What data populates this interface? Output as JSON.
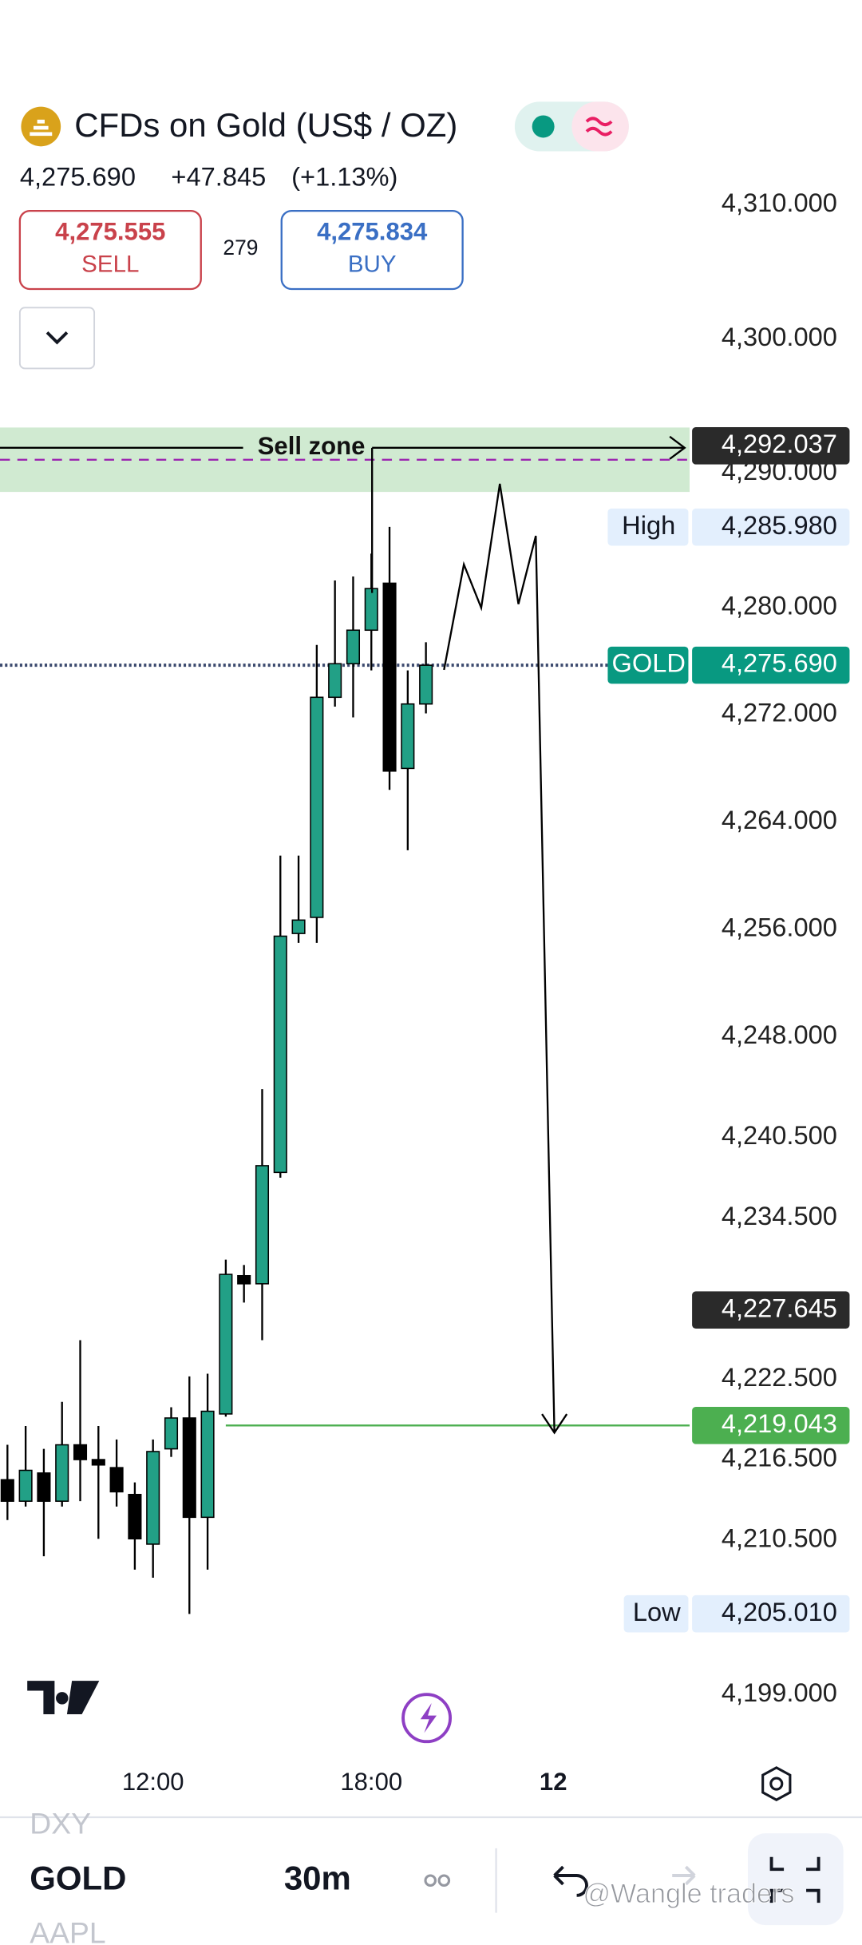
{
  "header": {
    "symbol": "CFDs on Gold (US$ / OZ)",
    "last": "4,275.690",
    "change": "+47.845",
    "change_pct": "(+1.13%)",
    "sell": {
      "price": "4,275.555",
      "label": "SELL"
    },
    "spread": "279",
    "buy": {
      "price": "4,275.834",
      "label": "BUY"
    }
  },
  "chart_data": {
    "type": "candlestick",
    "categories": [
      null,
      null,
      null,
      null,
      null,
      null,
      null,
      null,
      "12:00",
      null,
      null,
      null,
      null,
      null,
      null,
      null,
      null,
      null,
      null,
      null,
      "18:00",
      null,
      null,
      null,
      null,
      null,
      null,
      null,
      null,
      null,
      "12"
    ],
    "open": [
      4215.0,
      4213.4,
      4215.5,
      4213.4,
      4217.6,
      4216.5,
      4215.9,
      4213.9,
      4210.2,
      4217.3,
      4219.6,
      4212.2,
      4219.9,
      4230.2,
      4229.6,
      4237.9,
      4255.7,
      4256.9,
      4273.3,
      4275.8,
      4278.3,
      4281.8,
      4268.0,
      4272.8,
      null,
      null,
      null,
      null,
      null,
      null,
      null
    ],
    "high": [
      4217.6,
      4219.0,
      4217.3,
      4220.8,
      4225.4,
      4219.0,
      4218.0,
      4214.8,
      4218.0,
      4220.4,
      4222.7,
      4222.9,
      4231.4,
      4231.0,
      4244.1,
      4261.5,
      4261.5,
      4277.2,
      4282.0,
      4282.3,
      4284.0,
      4286.0,
      4275.3,
      4277.4,
      null,
      null,
      null,
      null,
      null,
      null,
      null
    ],
    "low": [
      4212.0,
      4213.0,
      4209.3,
      4213.0,
      4213.4,
      4210.6,
      4213.0,
      4208.3,
      4207.7,
      4216.7,
      4205.0,
      4208.3,
      4219.7,
      4228.2,
      4225.4,
      4237.5,
      4255.0,
      4255.0,
      4272.6,
      4271.8,
      4275.3,
      4266.4,
      4261.9,
      4272.1,
      null,
      null,
      null,
      null,
      null,
      null,
      null
    ],
    "close": [
      4213.4,
      4215.7,
      4213.4,
      4217.6,
      4216.5,
      4216.1,
      4214.1,
      4210.6,
      4217.1,
      4219.6,
      4212.2,
      4220.1,
      4230.3,
      4229.6,
      4238.4,
      4255.5,
      4256.7,
      4273.3,
      4275.8,
      4278.3,
      4281.4,
      4267.8,
      4272.8,
      4275.69,
      null,
      null,
      null,
      null,
      null,
      null,
      null
    ],
    "up_color": "#22a086",
    "down_color": "#000000",
    "ylim": [
      4195,
      4312
    ],
    "yticks": [
      {
        "value": 4310,
        "label": "4,310.000"
      },
      {
        "value": 4300,
        "label": "4,300.000"
      },
      {
        "value": 4290,
        "label": "4,290.000"
      },
      {
        "value": 4280,
        "label": "4,280.000"
      },
      {
        "value": 4272,
        "label": "4,272.000"
      },
      {
        "value": 4264,
        "label": "4,264.000"
      },
      {
        "value": 4256,
        "label": "4,256.000"
      },
      {
        "value": 4248,
        "label": "4,248.000"
      },
      {
        "value": 4240.5,
        "label": "4,240.500"
      },
      {
        "value": 4234.5,
        "label": "4,234.500"
      },
      {
        "value": 4222.5,
        "label": "4,222.500"
      },
      {
        "value": 4216.5,
        "label": "4,216.500"
      },
      {
        "value": 4210.5,
        "label": "4,210.500"
      },
      {
        "value": 4199,
        "label": "4,199.000"
      }
    ],
    "sell_zone": {
      "label": "Sell zone",
      "range": [
        4288.6,
        4293.4
      ],
      "color": "#c8e6c9"
    },
    "dashed_level": {
      "value": 4291.0,
      "color": "#9c27b0"
    },
    "price_tags": [
      {
        "value": 4292.037,
        "label": "4,292.037",
        "color": "#2a2a2a",
        "text_color": "#ffffff"
      },
      {
        "name": "High",
        "value": 4285.98,
        "label": "4,285.980",
        "color": "#e3effd",
        "text_color": "#131722"
      },
      {
        "name": "GOLD",
        "value": 4275.69,
        "label": "4,275.690",
        "color": "#089981",
        "text_color": "#ffffff",
        "line": "dotted"
      },
      {
        "value": 4227.645,
        "label": "4,227.645",
        "color": "#2a2a2a",
        "text_color": "#ffffff"
      },
      {
        "value": 4219.043,
        "label": "4,219.043",
        "color": "#4caf50",
        "text_color": "#ffffff",
        "line": "solid"
      },
      {
        "name": "Low",
        "value": 4205.01,
        "label": "4,205.010",
        "color": "#e3effd",
        "text_color": "#131722"
      }
    ]
  },
  "toolbar": {
    "symbols": [
      "DXY",
      "GOLD",
      "AAPL"
    ],
    "interval": "30m"
  },
  "watermark": "@Wangle traders"
}
